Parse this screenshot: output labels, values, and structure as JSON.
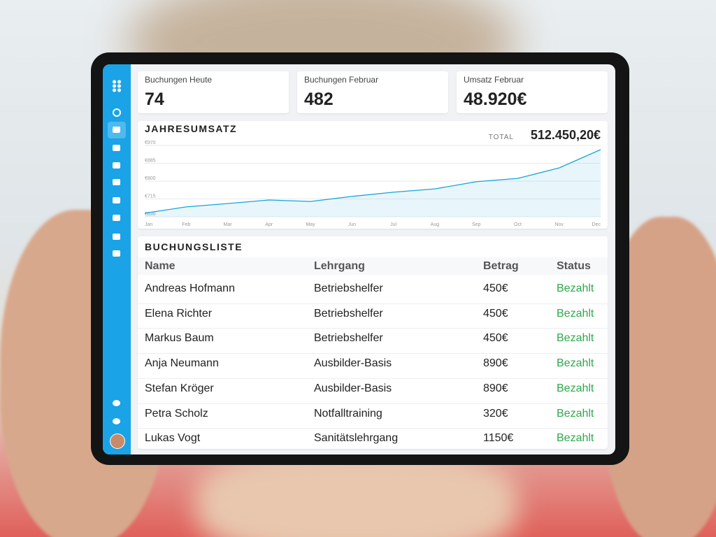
{
  "cards": [
    {
      "label": "Buchungen Heute",
      "value": "74"
    },
    {
      "label": "Buchungen Februar",
      "value": "482"
    },
    {
      "label": "Umsatz Februar",
      "value": "48.920€"
    }
  ],
  "chart_data": {
    "type": "line",
    "title": "JAHRESUMSATZ",
    "total_label": "TOTAL",
    "total": "512.450,20€",
    "categories": [
      "Jan",
      "Feb",
      "Mar",
      "Apr",
      "May",
      "Jun",
      "Jul",
      "Aug",
      "Sep",
      "Oct",
      "Nov",
      "Dec"
    ],
    "values": [
      647,
      677,
      693,
      710,
      703,
      727,
      747,
      763,
      797,
      813,
      863,
      950
    ],
    "color": "#1aa3d9",
    "ylim": [
      630,
      970
    ],
    "yticks": [
      {
        "value": 970,
        "label": "€970"
      },
      {
        "value": 885,
        "label": "€885"
      },
      {
        "value": 800,
        "label": "€800"
      },
      {
        "value": 715,
        "label": "€715"
      },
      {
        "value": 630,
        "label": "€630"
      }
    ],
    "grid": true
  },
  "table": {
    "title": "BUCHUNGSLISTE",
    "columns": [
      "Name",
      "Lehrgang",
      "Betrag",
      "Status"
    ],
    "rows": [
      [
        "Andreas Hofmann",
        "Betriebshelfer",
        "450€",
        "Bezahlt"
      ],
      [
        "Elena Richter",
        "Betriebshelfer",
        "450€",
        "Bezahlt"
      ],
      [
        "Markus Baum",
        "Betriebshelfer",
        "450€",
        "Bezahlt"
      ],
      [
        "Anja Neumann",
        "Ausbilder-Basis",
        "890€",
        "Bezahlt"
      ],
      [
        "Stefan Kröger",
        "Ausbilder-Basis",
        "890€",
        "Bezahlt"
      ],
      [
        "Petra Scholz",
        "Notfalltraining",
        "320€",
        "Bezahlt"
      ],
      [
        "Lukas Vogt",
        "Sanitätslehrgang",
        "1150€",
        "Bezahlt"
      ]
    ]
  }
}
